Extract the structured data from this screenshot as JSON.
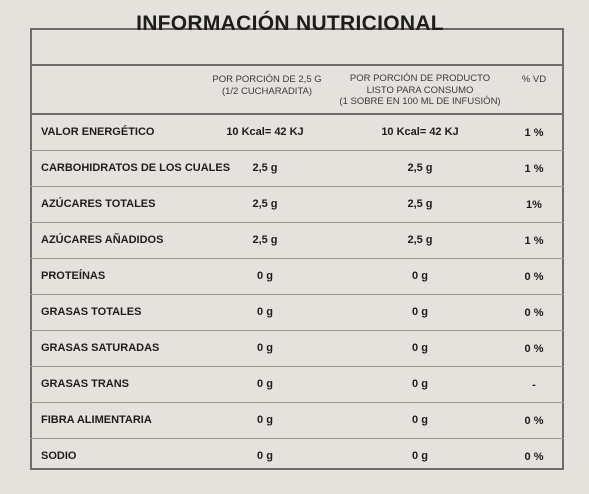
{
  "title": "INFORMACIÓN NUTRICIONAL",
  "columns": {
    "per_serving": "POR PORCIÓN DE 2,5 G (1/2 CUCHARADITA)",
    "per_serving_l1": "POR PORCIÓN DE 2,5 G",
    "per_serving_l2": "(1/2 CUCHARADITA)",
    "ready_l1": "POR PORCIÓN DE PRODUCTO",
    "ready_l2": "LISTO PARA CONSUMO",
    "ready_l3": "(1 SOBRE EN 100 ML DE INFUSIÓN)",
    "vd": "% VD"
  },
  "rows": [
    {
      "label": "VALOR ENERGÉTICO",
      "serving": "10 Kcal= 42 KJ",
      "ready": "10 Kcal= 42 KJ",
      "vd": "1 %"
    },
    {
      "label": "CARBOHIDRATOS DE LOS CUALES",
      "serving": "2,5 g",
      "ready": "2,5 g",
      "vd": "1 %"
    },
    {
      "label": "AZÚCARES TOTALES",
      "serving": "2,5 g",
      "ready": "2,5 g",
      "vd": "1%"
    },
    {
      "label": "AZÚCARES AÑADIDOS",
      "serving": "2,5 g",
      "ready": "2,5 g",
      "vd": "1 %"
    },
    {
      "label": "PROTEÍNAS",
      "serving": "0 g",
      "ready": "0 g",
      "vd": "0 %"
    },
    {
      "label": "GRASAS TOTALES",
      "serving": "0 g",
      "ready": "0 g",
      "vd": "0 %"
    },
    {
      "label": "GRASAS SATURADAS",
      "serving": "0 g",
      "ready": "0 g",
      "vd": "0 %"
    },
    {
      "label": "GRASAS TRANS",
      "serving": "0 g",
      "ready": "0 g",
      "vd": "-"
    },
    {
      "label": "FIBRA ALIMENTARIA",
      "serving": "0 g",
      "ready": "0 g",
      "vd": "0 %"
    },
    {
      "label": "SODIO",
      "serving": "0 g",
      "ready": "0 g",
      "vd": "0 %"
    }
  ]
}
